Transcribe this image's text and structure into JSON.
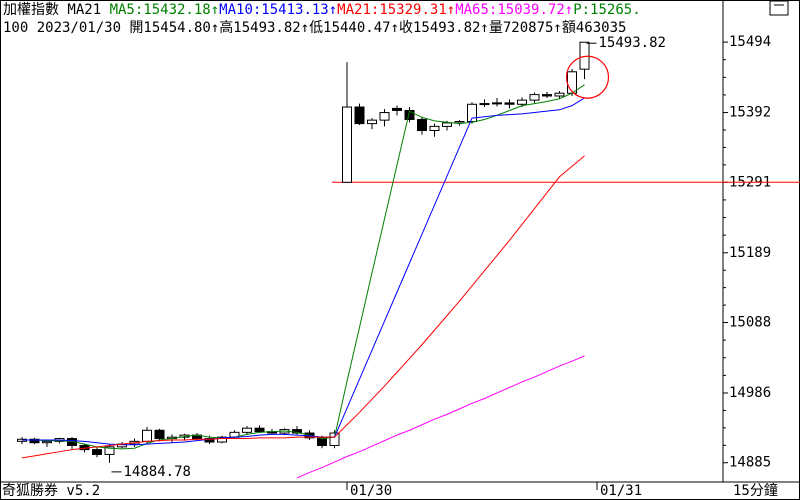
{
  "chart_data": {
    "type": "candlestick",
    "title": "加權指數 MA21 ",
    "indicator": "P:15265.",
    "info": "100 2023/01/30 開15454.80↑高15493.82↑低15440.47↑收15493.82↑量720875↑額463035",
    "brand": "奇狐勝券 v5.2",
    "period": "15分鐘",
    "ylim": [
      14860,
      15526
    ],
    "yticks": [
      14885,
      14986,
      15088,
      15189,
      15291,
      15392,
      15494
    ],
    "xticks": [
      {
        "value": 26,
        "label": "01/30"
      },
      {
        "value": 46,
        "label": "01/31"
      }
    ],
    "reference_line": 15291,
    "ohlc": {
      "open": [
        14916,
        14919,
        14914,
        14916,
        14920,
        14910,
        14904,
        14897,
        14908,
        14912,
        14916,
        14932,
        14920,
        14922,
        14925,
        14920,
        14915,
        14922,
        14929,
        14935,
        14930,
        14928,
        14933,
        14928,
        14921,
        14910,
        15291,
        15400,
        15376,
        15381,
        15398,
        15395,
        15382,
        15366,
        15372,
        15377,
        15379,
        15404,
        15405,
        15406,
        15404,
        15410,
        15418,
        15416,
        15420,
        15454.8
      ],
      "high": [
        14922,
        14921,
        14918,
        14921,
        14922,
        14913,
        14908,
        14912,
        14915,
        14920,
        14937,
        14934,
        14926,
        14927,
        14928,
        14924,
        14924,
        14932,
        14938,
        14939,
        14934,
        14935,
        14938,
        14932,
        14924,
        14932,
        15465,
        15405,
        15384,
        15397,
        15402,
        15400,
        15386,
        15376,
        15380,
        15381,
        15407,
        15411,
        15413,
        15411,
        15414,
        15421,
        15422,
        15423,
        15455,
        15493.82
      ],
      "low": [
        14912,
        14912,
        14908,
        14913,
        14905,
        14900,
        14893,
        14884.78,
        14906,
        14908,
        14912,
        14916,
        14914,
        14917,
        14918,
        14912,
        14913,
        14920,
        14925,
        14928,
        14926,
        14925,
        14926,
        14918,
        14906,
        14906,
        15291,
        15374,
        15368,
        15372,
        15388,
        15378,
        15360,
        15357,
        15366,
        15373,
        15376,
        15400,
        15401,
        15398,
        15400,
        15406,
        15413,
        15412,
        15416,
        15440.47
      ],
      "close": [
        14919,
        14914,
        14916,
        14920,
        14910,
        14904,
        14897,
        14908,
        14912,
        14916,
        14932,
        14920,
        14922,
        14925,
        14920,
        14915,
        14922,
        14929,
        14935,
        14930,
        14928,
        14933,
        14928,
        14921,
        14910,
        14928,
        15400,
        15376,
        15381,
        15392,
        15395,
        15382,
        15366,
        15372,
        15377,
        15379,
        15404,
        15405,
        15406,
        15404,
        15410,
        15418,
        15416,
        15420,
        15451,
        15493.82
      ]
    },
    "annotations": [
      {
        "label": "15493.82",
        "index": 45,
        "at": "high"
      },
      {
        "label": "14884.78",
        "index": 7,
        "at": "low"
      }
    ],
    "series": [
      {
        "name": "MA5:15432.18↑",
        "color": "#008000",
        "values": [
          14918,
          14918,
          14917,
          14917,
          14916,
          14912,
          14908,
          14906,
          14905,
          14906,
          14913,
          14918,
          14920,
          14923,
          14925,
          14922,
          14921,
          14922,
          14926,
          14929,
          14930,
          14931,
          14929,
          14925,
          14920,
          14922,
          15003,
          15081,
          15160,
          15238,
          15316,
          15394,
          15385,
          15380,
          15378,
          15376,
          15378,
          15382,
          15388,
          15395,
          15402,
          15405,
          15408,
          15412,
          15420,
          15432.18
        ]
      },
      {
        "name": "MA10:15413.13↑",
        "color": "#0000ff",
        "values": [
          14918,
          14918,
          14918,
          14918,
          14917,
          14916,
          14914,
          14912,
          14911,
          14911,
          14912,
          14913,
          14914,
          14915,
          14917,
          14919,
          14921,
          14922,
          14923,
          14925,
          14926,
          14926,
          14925,
          14924,
          14922,
          14922,
          14964,
          15006,
          15048,
          15090,
          15132,
          15174,
          15216,
          15258,
          15300,
          15342,
          15384,
          15386,
          15388,
          15389,
          15390,
          15392,
          15394,
          15396,
          15402,
          15413.13
        ]
      },
      {
        "name": "MA21:15329.31↑",
        "color": "#ff0000",
        "values": [
          14892,
          14895,
          14898,
          14901,
          14904,
          14906,
          14908,
          14910,
          14912,
          14914,
          14916,
          14917,
          14918,
          14918,
          14919,
          14919,
          14920,
          14920,
          14920,
          14921,
          14921,
          14921,
          14922,
          14922,
          14922,
          14922,
          14940,
          14958,
          14977,
          14996,
          15016,
          15036,
          15056,
          15077,
          15098,
          15119,
          15141,
          15163,
          15185,
          15207,
          15230,
          15253,
          15276,
          15299,
          15314,
          15329.31
        ]
      },
      {
        "name": "MA65:15039.72↑",
        "color": "#ff00ff",
        "values": [
          null,
          null,
          null,
          null,
          null,
          null,
          null,
          null,
          null,
          null,
          null,
          null,
          null,
          null,
          null,
          null,
          null,
          null,
          null,
          null,
          null,
          null,
          14863,
          14871,
          14878,
          14886,
          14894,
          14901,
          14909,
          14917,
          14925,
          14932,
          14940,
          14948,
          14955,
          14963,
          14971,
          14978,
          14986,
          14994,
          15002,
          15009,
          15017,
          15025,
          15032,
          15039.72
        ]
      }
    ]
  }
}
